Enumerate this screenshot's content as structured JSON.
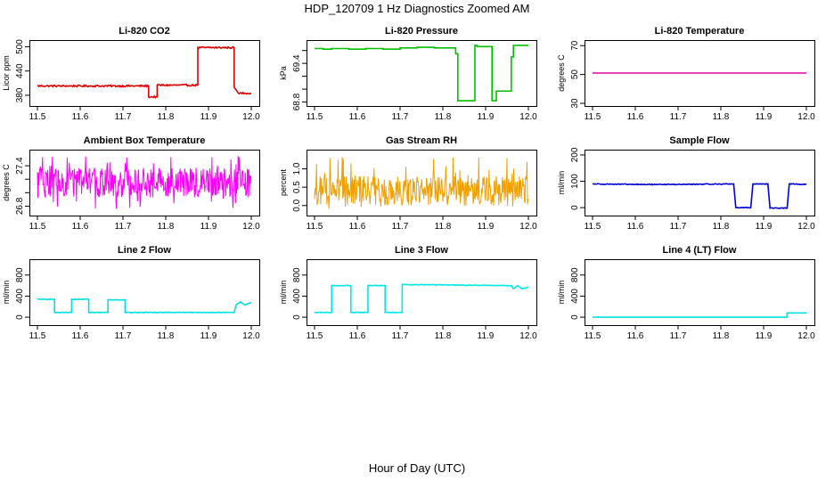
{
  "figure": {
    "title": "HDP_120709  1 Hz Diagnostics Zoomed AM",
    "xlabel": "Hour of Day (UTC)"
  },
  "chart_data": [
    {
      "type": "line",
      "title": "Li-820 CO2",
      "ylabel": "Licor ppm",
      "color": "#e00000",
      "xlim": [
        11.5,
        12.0
      ],
      "ylim": [
        360,
        510
      ],
      "xticks": [
        11.5,
        11.6,
        11.7,
        11.8,
        11.9,
        12.0
      ],
      "yticks": [
        380,
        440,
        500
      ],
      "ytick_labels": [
        "380",
        "440",
        "500"
      ],
      "noise": 2,
      "series": [
        {
          "x": [
            11.5,
            11.76,
            11.76,
            11.78,
            11.78,
            11.875,
            11.875,
            11.96,
            11.96,
            11.97,
            12.0
          ],
          "y": [
            403,
            403,
            376,
            376,
            405,
            405,
            498,
            498,
            400,
            385,
            385
          ]
        }
      ]
    },
    {
      "type": "line",
      "title": "Li-820 Pressure",
      "ylabel": "kPa",
      "color": "#00c000",
      "xlim": [
        11.5,
        12.0
      ],
      "ylim": [
        68.78,
        69.72
      ],
      "xticks": [
        11.5,
        11.6,
        11.7,
        11.8,
        11.9,
        12.0
      ],
      "yticks": [
        68.8,
        69.0,
        69.2,
        69.4,
        69.6
      ],
      "ytick_labels": [
        "68.8",
        "",
        "",
        "69.4",
        ""
      ],
      "noise": 0,
      "series": [
        {
          "x": [
            11.5,
            11.52,
            11.52,
            11.54,
            11.54,
            11.58,
            11.58,
            11.62,
            11.62,
            11.66,
            11.66,
            11.7,
            11.7,
            11.74,
            11.74,
            11.78,
            11.78,
            11.83,
            11.83,
            11.835,
            11.835,
            11.875,
            11.875,
            11.88,
            11.88,
            11.915,
            11.915,
            11.925,
            11.925,
            11.96,
            11.96,
            11.965,
            11.965,
            12.0
          ],
          "y": [
            69.63,
            69.63,
            69.62,
            69.62,
            69.63,
            69.63,
            69.62,
            69.62,
            69.63,
            69.63,
            69.62,
            69.62,
            69.64,
            69.64,
            69.65,
            69.65,
            69.64,
            69.64,
            69.55,
            69.55,
            68.82,
            68.82,
            69.68,
            69.68,
            69.66,
            69.66,
            68.82,
            68.82,
            68.97,
            68.97,
            69.5,
            69.5,
            69.68,
            69.68
          ]
        }
      ]
    },
    {
      "type": "line",
      "title": "Li-820 Temperature",
      "ylabel": "degrees C",
      "color": "#e000a0",
      "xlim": [
        11.5,
        12.0
      ],
      "ylim": [
        30,
        72
      ],
      "xticks": [
        11.5,
        11.6,
        11.7,
        11.8,
        11.9,
        12.0
      ],
      "yticks": [
        30,
        50,
        70
      ],
      "ytick_labels": [
        "30",
        "50",
        "70"
      ],
      "noise": 0,
      "series": [
        {
          "x": [
            11.5,
            12.0
          ],
          "y": [
            51,
            51
          ]
        }
      ]
    },
    {
      "type": "line",
      "title": "Ambient Box Temperature",
      "ylabel": "degrees C",
      "color": "#ff00ff",
      "xlim": [
        11.5,
        12.0
      ],
      "ylim": [
        26.7,
        27.6
      ],
      "xticks": [
        11.5,
        11.6,
        11.7,
        11.8,
        11.9,
        12.0
      ],
      "yticks": [
        26.8,
        27.0,
        27.2,
        27.4
      ],
      "ytick_labels": [
        "26.8",
        "",
        "",
        "27.4"
      ],
      "noise": 0,
      "band": {
        "center": 27.15,
        "low": 26.75,
        "high": 27.55,
        "step": 0.0012,
        "bias": 0.5
      }
    },
    {
      "type": "line",
      "title": "Gas Stream RH",
      "ylabel": "percent",
      "color": "#f0a000",
      "xlim": [
        11.5,
        12.0
      ],
      "ylim": [
        -0.2,
        1.45
      ],
      "xticks": [
        11.5,
        11.6,
        11.7,
        11.8,
        11.9,
        12.0
      ],
      "yticks": [
        0.0,
        0.5,
        1.0
      ],
      "ytick_labels": [
        "0.0",
        "0.5",
        "1.0"
      ],
      "noise": 0,
      "band": {
        "center": 0.4,
        "low": -0.15,
        "high": 1.35,
        "step": 0.0012,
        "bias": 0.8
      }
    },
    {
      "type": "line",
      "title": "Sample Flow",
      "ylabel": "ml/min",
      "color": "#0000d0",
      "xlim": [
        11.5,
        12.0
      ],
      "ylim": [
        -20,
        210
      ],
      "xticks": [
        11.5,
        11.6,
        11.7,
        11.8,
        11.9,
        12.0
      ],
      "yticks": [
        0,
        100,
        200
      ],
      "ytick_labels": [
        "0",
        "100",
        "200"
      ],
      "noise": 1.5,
      "series": [
        {
          "x": [
            11.5,
            11.6,
            11.7,
            11.83,
            11.835,
            11.87,
            11.875,
            11.91,
            11.915,
            11.955,
            11.96,
            12.0
          ],
          "y": [
            90,
            88,
            88,
            90,
            0,
            0,
            90,
            90,
            -2,
            -2,
            90,
            88
          ]
        }
      ]
    },
    {
      "type": "line",
      "title": "Line 2 Flow",
      "ylabel": "ml/min",
      "color": "#00e0e0",
      "xlim": [
        11.5,
        12.0
      ],
      "ylim": [
        -100,
        1050
      ],
      "xticks": [
        11.5,
        11.6,
        11.7,
        11.8,
        11.9,
        12.0
      ],
      "yticks": [
        0,
        400,
        800
      ],
      "ytick_labels": [
        "0",
        "400",
        "800"
      ],
      "noise": 6,
      "series": [
        {
          "x": [
            11.5,
            11.54,
            11.54,
            11.58,
            11.58,
            11.62,
            11.62,
            11.665,
            11.665,
            11.705,
            11.705,
            11.96,
            11.965,
            11.975,
            11.985,
            12.0
          ],
          "y": [
            340,
            340,
            90,
            90,
            340,
            340,
            90,
            90,
            330,
            330,
            90,
            90,
            240,
            290,
            230,
            280
          ]
        }
      ]
    },
    {
      "type": "line",
      "title": "Line 3 Flow",
      "ylabel": "ml/min",
      "color": "#00e8e8",
      "xlim": [
        11.5,
        12.0
      ],
      "ylim": [
        -100,
        1050
      ],
      "xticks": [
        11.5,
        11.6,
        11.7,
        11.8,
        11.9,
        12.0
      ],
      "yticks": [
        0,
        400,
        800
      ],
      "ytick_labels": [
        "0",
        "400",
        "800"
      ],
      "noise": 6,
      "series": [
        {
          "x": [
            11.5,
            11.54,
            11.54,
            11.585,
            11.585,
            11.625,
            11.625,
            11.665,
            11.665,
            11.705,
            11.705,
            11.96,
            11.965,
            11.975,
            11.985,
            12.0
          ],
          "y": [
            90,
            90,
            600,
            600,
            90,
            90,
            600,
            600,
            90,
            90,
            620,
            600,
            540,
            600,
            540,
            570
          ]
        }
      ]
    },
    {
      "type": "line",
      "title": "Line 4 (LT) Flow",
      "ylabel": "ml/min",
      "color": "#00e0e0",
      "xlim": [
        11.5,
        12.0
      ],
      "ylim": [
        -100,
        1050
      ],
      "xticks": [
        11.5,
        11.6,
        11.7,
        11.8,
        11.9,
        12.0
      ],
      "yticks": [
        0,
        400,
        800
      ],
      "ytick_labels": [
        "0",
        "400",
        "800"
      ],
      "noise": 0,
      "series": [
        {
          "x": [
            11.5,
            11.955,
            11.955,
            12.0
          ],
          "y": [
            0,
            0,
            80,
            80
          ]
        }
      ]
    }
  ]
}
